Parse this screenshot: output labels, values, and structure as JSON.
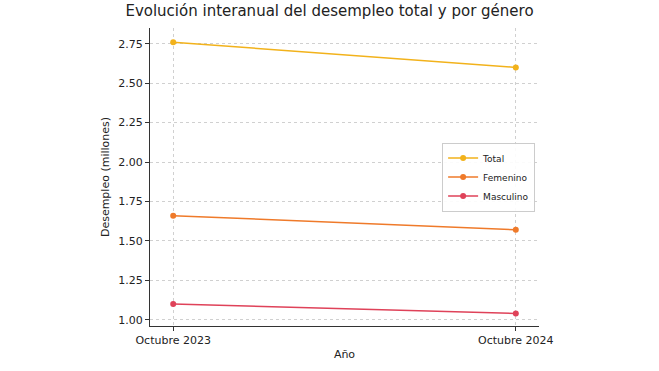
{
  "chart_data": {
    "type": "line",
    "title": "Evolución interanual del desempleo total y por género",
    "x_label": "Año",
    "y_label": "Desempleo (millones)",
    "categories": [
      "Octubre 2023",
      "Octubre 2024"
    ],
    "series": [
      {
        "name": "Total",
        "color": "#f2b21b",
        "values": [
          2.76,
          2.6
        ]
      },
      {
        "name": "Femenino",
        "color": "#ef7a2a",
        "values": [
          1.66,
          1.57
        ]
      },
      {
        "name": "Masculino",
        "color": "#df4259",
        "values": [
          1.1,
          1.04
        ]
      }
    ],
    "ylim": [
      0.96,
      2.85
    ],
    "yticks": [
      {
        "value": 1.0,
        "label": "1.00"
      },
      {
        "value": 1.25,
        "label": "1.25"
      },
      {
        "value": 1.5,
        "label": "1.50"
      },
      {
        "value": 1.75,
        "label": "1.75"
      },
      {
        "value": 2.0,
        "label": "2.00"
      },
      {
        "value": 2.25,
        "label": "2.25"
      },
      {
        "value": 2.5,
        "label": "2.50"
      },
      {
        "value": 2.75,
        "label": "2.75"
      }
    ],
    "grid": true,
    "legend": "right",
    "marker": "circle",
    "line_style": "solid"
  }
}
